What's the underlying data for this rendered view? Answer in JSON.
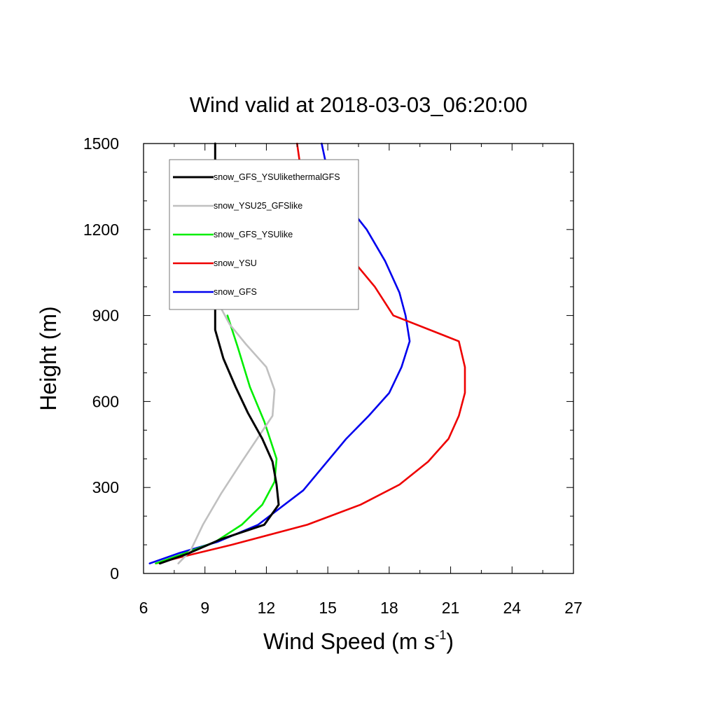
{
  "chart_data": {
    "type": "line",
    "title": "Wind valid at 2018-03-03_06:20:00",
    "xlabel": "Wind Speed (m s",
    "xlabel_sup": "-1",
    "xlabel_end": ")",
    "ylabel": "Height (m)",
    "xlim": [
      6,
      27
    ],
    "ylim": [
      0,
      1500
    ],
    "xticks": [
      6,
      9,
      12,
      15,
      18,
      21,
      24,
      27
    ],
    "xtick_labels": [
      "6",
      "9",
      "12",
      "15",
      "18",
      "21",
      "24",
      "27"
    ],
    "yticks": [
      0,
      300,
      600,
      900,
      1200,
      1500
    ],
    "ytick_labels": [
      "0",
      "300",
      "600",
      "900",
      "1200",
      "1500"
    ],
    "grid": false,
    "legend_position": "top-left",
    "series": [
      {
        "name": "snow_GFS_YSUlikethermalGFS",
        "color": "#000000",
        "x": [
          6.8,
          8.2,
          9.8,
          11.9,
          12.6,
          12.5,
          12.3,
          11.8,
          11.1,
          10.5,
          9.9,
          9.5,
          9.5,
          9.5,
          9.5,
          9.5,
          9.5
        ],
        "y": [
          35,
          70,
          120,
          170,
          240,
          310,
          390,
          470,
          560,
          650,
          750,
          850,
          950,
          1000,
          1100,
          1300,
          1500
        ]
      },
      {
        "name": "snow_YSU25_GFSlike",
        "color": "#c0c0c0",
        "x": [
          7.7,
          8.3,
          8.9,
          9.8,
          10.8,
          12.3,
          12.4,
          12.0,
          11.0,
          10.2,
          9.6,
          9.5
        ],
        "y": [
          35,
          80,
          170,
          280,
          390,
          550,
          640,
          720,
          800,
          870,
          950,
          1000
        ],
        "stop_at_legend": true
      },
      {
        "name": "snow_GFS_YSUlike",
        "color": "#00ee00",
        "x": [
          6.6,
          8.0,
          9.5,
          10.8,
          11.8,
          12.4,
          12.5,
          11.9,
          11.2,
          10.6,
          10.1
        ],
        "y": [
          35,
          70,
          110,
          170,
          240,
          320,
          400,
          530,
          650,
          790,
          900
        ]
      },
      {
        "name": "snow_YSU",
        "color": "#ee0000",
        "x": [
          6.6,
          8.0,
          10.3,
          14.0,
          16.6,
          18.5,
          19.9,
          20.9,
          21.4,
          21.7,
          21.7,
          21.4,
          18.2,
          17.3,
          15.9,
          14.7,
          14.0,
          13.7,
          13.5
        ],
        "y": [
          35,
          60,
          100,
          170,
          240,
          310,
          390,
          470,
          550,
          630,
          720,
          810,
          900,
          1000,
          1120,
          1200,
          1300,
          1400,
          1500
        ]
      },
      {
        "name": "snow_GFS",
        "color": "#0000ee",
        "x": [
          6.3,
          7.7,
          9.6,
          11.6,
          13.8,
          15.9,
          17.0,
          18.0,
          18.6,
          19.0,
          18.8,
          18.5,
          17.8,
          16.9,
          15.8,
          15.0,
          14.7
        ],
        "y": [
          35,
          70,
          110,
          170,
          290,
          470,
          550,
          630,
          720,
          810,
          900,
          980,
          1090,
          1200,
          1300,
          1400,
          1500
        ]
      }
    ]
  }
}
